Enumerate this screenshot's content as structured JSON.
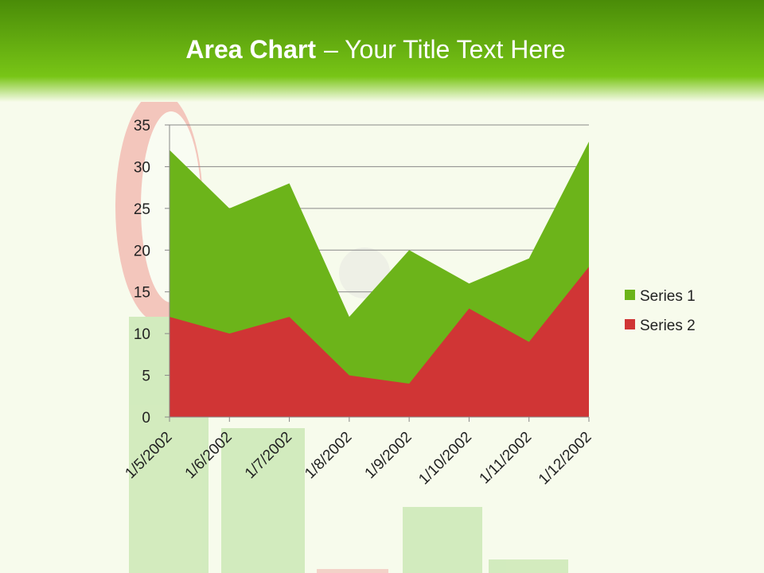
{
  "chart_data": {
    "type": "area",
    "title_bold": "Area Chart",
    "title_rest": "– Your Title Text Here",
    "categories": [
      "1/5/2002",
      "1/6/2002",
      "1/7/2002",
      "1/8/2002",
      "1/9/2002",
      "1/10/2002",
      "1/11/2002",
      "1/12/2002"
    ],
    "series": [
      {
        "name": "Series 1",
        "color": "#6cb41a",
        "values": [
          32,
          25,
          28,
          12,
          20,
          16,
          19,
          33
        ]
      },
      {
        "name": "Series 2",
        "color": "#d03535",
        "values": [
          12,
          10,
          12,
          5,
          4,
          13,
          9,
          18
        ]
      }
    ],
    "ylim": [
      0,
      35
    ],
    "yticks": [
      0,
      5,
      10,
      15,
      20,
      25,
      30,
      35
    ],
    "grid": true,
    "legend": "right"
  }
}
